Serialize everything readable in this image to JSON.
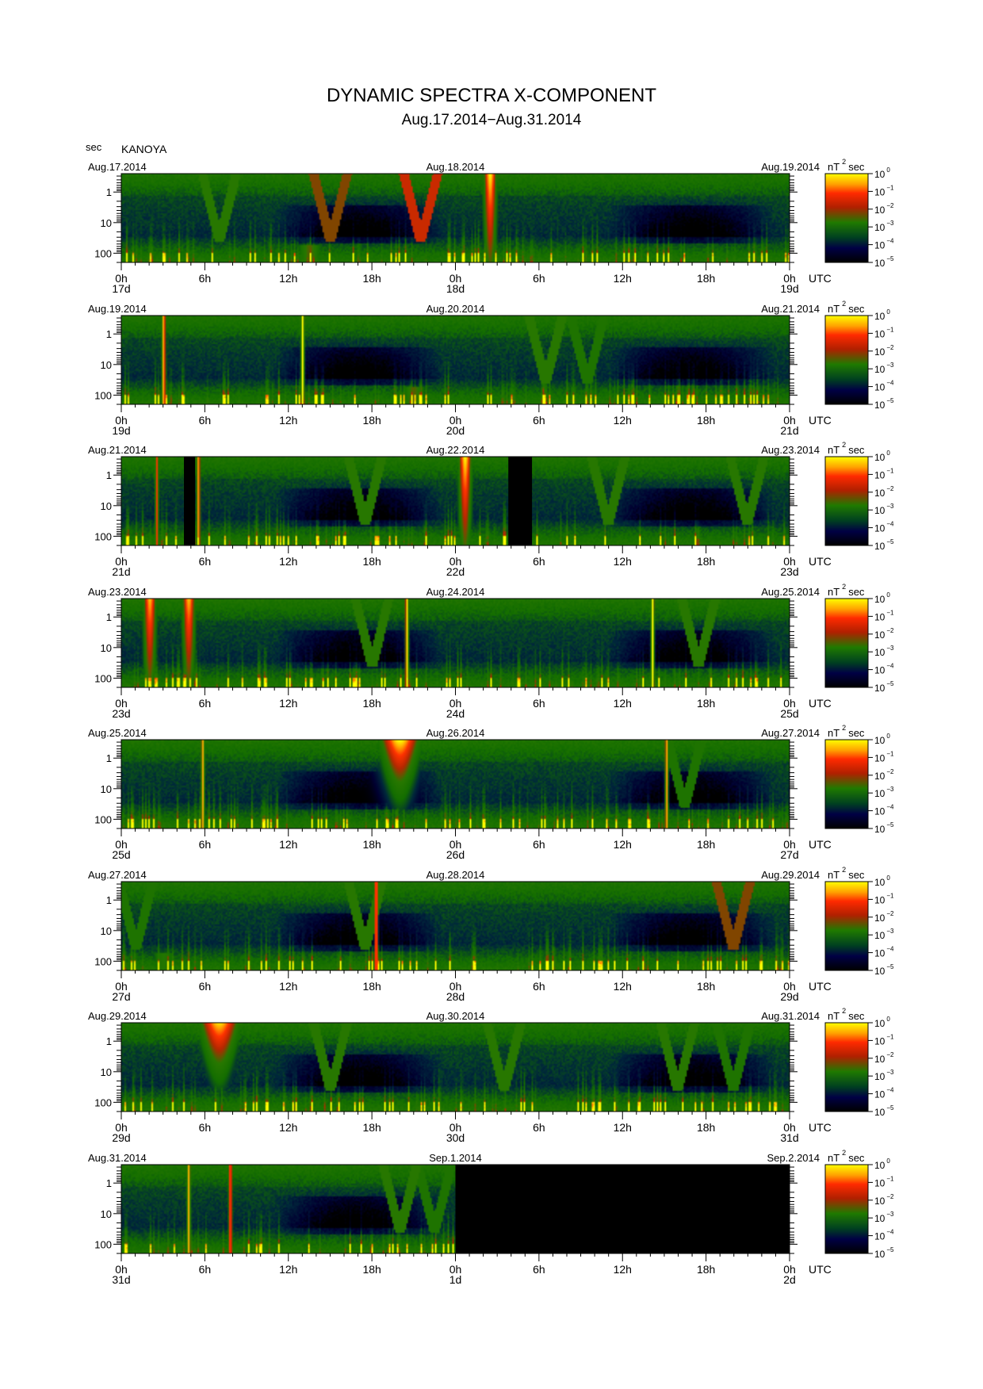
{
  "title": "DYNAMIC SPECTRA X-COMPONENT",
  "subtitle": "Aug.17.2014−Aug.31.2014",
  "station": "KANOYA",
  "yunit": "sec",
  "xunit": "UTC",
  "colorbar": {
    "unit_base": "nT",
    "unit_exp": "2",
    "unit_tail": "sec",
    "base": "10",
    "exponents": [
      "0",
      "−1",
      "−2",
      "−3",
      "−4",
      "−5"
    ],
    "colors": [
      "#ffff00",
      "#ff2a00",
      "#c42a00",
      "#1f7a00",
      "#000033",
      "#000000"
    ]
  },
  "chart_data": [
    {
      "type": "heatmap",
      "date_left": "Aug.17.2014",
      "date_center": "Aug.18.2014",
      "date_right": "Aug.19.2014",
      "xticks": [
        "0h",
        "6h",
        "12h",
        "18h",
        "0h",
        "6h",
        "12h",
        "18h",
        "0h"
      ],
      "daylabels": [
        "17d",
        "18d",
        "19d"
      ],
      "yticks": [
        "1",
        "10",
        "100"
      ],
      "yscale": "log",
      "ylim": [
        200,
        0.25
      ],
      "xlim_hours": [
        0,
        48
      ],
      "events": [
        {
          "type": "burst",
          "hour": 26.5,
          "i": 1.0
        },
        {
          "type": "dip",
          "hour": 15,
          "i": 0.7
        },
        {
          "type": "dip",
          "hour": 21.5,
          "i": 0.8
        },
        {
          "type": "dip",
          "hour": 7,
          "i": 0.6
        },
        {
          "type": "lowband",
          "hour": 13.5,
          "i": 0.8
        }
      ],
      "gap_hours": []
    },
    {
      "type": "heatmap",
      "date_left": "Aug.19.2014",
      "date_center": "Aug.20.2014",
      "date_right": "Aug.21.2014",
      "xticks": [
        "0h",
        "6h",
        "12h",
        "18h",
        "0h",
        "6h",
        "12h",
        "18h",
        "0h"
      ],
      "daylabels": [
        "19d",
        "20d",
        "21d"
      ],
      "yticks": [
        "1",
        "10",
        "100"
      ],
      "yscale": "log",
      "ylim": [
        200,
        0.25
      ],
      "xlim_hours": [
        0,
        48
      ],
      "events": [
        {
          "type": "line",
          "hour": 3,
          "i": 1.0
        },
        {
          "type": "line",
          "hour": 13,
          "i": 1.0
        },
        {
          "type": "dip",
          "hour": 30.5,
          "i": 0.6
        },
        {
          "type": "dip",
          "hour": 33.5,
          "i": 0.5
        },
        {
          "type": "lowband",
          "hour": 21,
          "i": 0.8
        }
      ],
      "gap_hours": []
    },
    {
      "type": "heatmap",
      "date_left": "Aug.21.2014",
      "date_center": "Aug.22.2014",
      "date_right": "Aug.23.2014",
      "xticks": [
        "0h",
        "6h",
        "12h",
        "18h",
        "0h",
        "6h",
        "12h",
        "18h",
        "0h"
      ],
      "daylabels": [
        "21d",
        "22d",
        "23d"
      ],
      "yticks": [
        "1",
        "10",
        "100"
      ],
      "yscale": "log",
      "ylim": [
        200,
        0.25
      ],
      "xlim_hours": [
        0,
        48
      ],
      "events": [
        {
          "type": "burst",
          "hour": 24.7,
          "i": 1.0
        },
        {
          "type": "line",
          "hour": 5.5,
          "i": 0.9
        },
        {
          "type": "line",
          "hour": 2.5,
          "i": 0.7
        },
        {
          "type": "dip",
          "hour": 17.5,
          "i": 0.6
        },
        {
          "type": "dip",
          "hour": 35,
          "i": 0.6
        },
        {
          "type": "dip",
          "hour": 45,
          "i": 0.6
        }
      ],
      "gap_hours": [
        [
          4.5,
          5.3
        ],
        [
          27.8,
          29.5
        ]
      ]
    },
    {
      "type": "heatmap",
      "date_left": "Aug.23.2014",
      "date_center": "Aug.24.2014",
      "date_right": "Aug.25.2014",
      "xticks": [
        "0h",
        "6h",
        "12h",
        "18h",
        "0h",
        "6h",
        "12h",
        "18h",
        "0h"
      ],
      "daylabels": [
        "23d",
        "24d",
        "25d"
      ],
      "yticks": [
        "1",
        "10",
        "100"
      ],
      "yscale": "log",
      "ylim": [
        200,
        0.25
      ],
      "xlim_hours": [
        0,
        48
      ],
      "events": [
        {
          "type": "burst",
          "hour": 2.0,
          "i": 0.9
        },
        {
          "type": "burst",
          "hour": 4.8,
          "i": 0.9
        },
        {
          "type": "line",
          "hour": 20.5,
          "i": 1.0
        },
        {
          "type": "line",
          "hour": 38.2,
          "i": 1.0
        },
        {
          "type": "dip",
          "hour": 18,
          "i": 0.6
        },
        {
          "type": "dip",
          "hour": 41.5,
          "i": 0.6
        }
      ],
      "gap_hours": []
    },
    {
      "type": "heatmap",
      "date_left": "Aug.25.2014",
      "date_center": "Aug.26.2014",
      "date_right": "Aug.27.2014",
      "xticks": [
        "0h",
        "6h",
        "12h",
        "18h",
        "0h",
        "6h",
        "12h",
        "18h",
        "0h"
      ],
      "daylabels": [
        "25d",
        "26d",
        "27d"
      ],
      "yticks": [
        "1",
        "10",
        "100"
      ],
      "yscale": "log",
      "ylim": [
        200,
        0.25
      ],
      "xlim_hours": [
        0,
        48
      ],
      "events": [
        {
          "type": "bigburst",
          "hour": 20,
          "i": 1.0
        },
        {
          "type": "line",
          "hour": 5.8,
          "i": 0.9
        },
        {
          "type": "line",
          "hour": 39.2,
          "i": 0.9
        },
        {
          "type": "dip",
          "hour": 40.5,
          "i": 0.5
        }
      ],
      "gap_hours": []
    },
    {
      "type": "heatmap",
      "date_left": "Aug.27.2014",
      "date_center": "Aug.28.2014",
      "date_right": "Aug.29.2014",
      "xticks": [
        "0h",
        "6h",
        "12h",
        "18h",
        "0h",
        "6h",
        "12h",
        "18h",
        "0h"
      ],
      "daylabels": [
        "27d",
        "28d",
        "29d"
      ],
      "yticks": [
        "1",
        "10",
        "100"
      ],
      "yscale": "log",
      "ylim": [
        200,
        0.25
      ],
      "xlim_hours": [
        0,
        48
      ],
      "events": [
        {
          "type": "line",
          "hour": 18.3,
          "i": 1.0
        },
        {
          "type": "dip",
          "hour": 17.5,
          "i": 0.6
        },
        {
          "type": "dip",
          "hour": 44,
          "i": 0.7
        },
        {
          "type": "dip",
          "hour": 1,
          "i": 0.5
        },
        {
          "type": "lowband",
          "hour": 3,
          "i": 0.7
        }
      ],
      "gap_hours": []
    },
    {
      "type": "heatmap",
      "date_left": "Aug.29.2014",
      "date_center": "Aug.30.2014",
      "date_right": "Aug.31.2014",
      "xticks": [
        "0h",
        "6h",
        "12h",
        "18h",
        "0h",
        "6h",
        "12h",
        "18h",
        "0h"
      ],
      "daylabels": [
        "29d",
        "30d",
        "31d"
      ],
      "yticks": [
        "1",
        "10",
        "100"
      ],
      "yscale": "log",
      "ylim": [
        200,
        0.25
      ],
      "xlim_hours": [
        0,
        48
      ],
      "events": [
        {
          "type": "bigburst",
          "hour": 7,
          "i": 0.95
        },
        {
          "type": "dip",
          "hour": 15,
          "i": 0.6
        },
        {
          "type": "dip",
          "hour": 27.5,
          "i": 0.6
        },
        {
          "type": "dip",
          "hour": 40,
          "i": 0.6
        },
        {
          "type": "dip",
          "hour": 44,
          "i": 0.5
        }
      ],
      "gap_hours": []
    },
    {
      "type": "heatmap",
      "date_left": "Aug.31.2014",
      "date_center": "Sep.1.2014",
      "date_right": "Sep.2.2014",
      "xticks": [
        "0h",
        "6h",
        "12h",
        "18h",
        "0h",
        "6h",
        "12h",
        "18h",
        "0h"
      ],
      "daylabels": [
        "31d",
        "1d",
        "2d"
      ],
      "yticks": [
        "1",
        "10",
        "100"
      ],
      "yscale": "log",
      "ylim": [
        200,
        0.25
      ],
      "xlim_hours": [
        0,
        48
      ],
      "events": [
        {
          "type": "line",
          "hour": 4.8,
          "i": 0.9
        },
        {
          "type": "line",
          "hour": 7.8,
          "i": 0.9
        },
        {
          "type": "dip",
          "hour": 20,
          "i": 0.6
        },
        {
          "type": "dip",
          "hour": 22.5,
          "i": 0.5
        }
      ],
      "gap_hours": [
        [
          24,
          48
        ]
      ]
    }
  ]
}
